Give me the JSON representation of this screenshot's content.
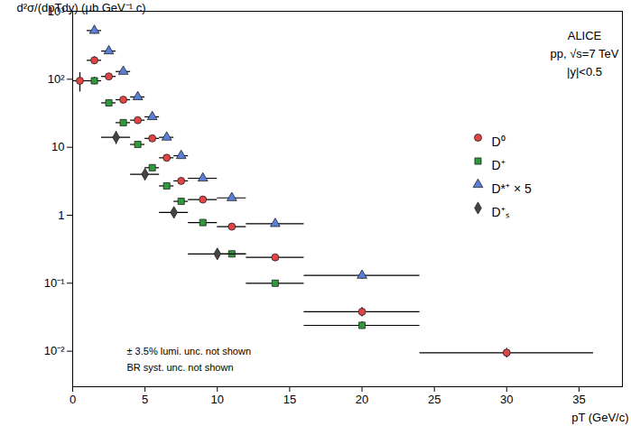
{
  "chart_data": {
    "type": "scatter",
    "x_label": "pT (GeV/c)",
    "y_label": "d²σ/(dpTdy) (μb GeV⁻¹ c)",
    "log": "y",
    "xlim": [
      0,
      38
    ],
    "ylim": [
      0.003,
      1000
    ],
    "xticks": [
      0,
      5,
      10,
      15,
      20,
      25,
      30,
      35
    ],
    "yticks": [
      {
        "value": 0.01,
        "label": "10⁻²"
      },
      {
        "value": 0.1,
        "label": "10⁻¹"
      },
      1,
      10,
      {
        "value": 100,
        "label": "10²"
      },
      {
        "value": 1000,
        "label": "10³"
      }
    ],
    "annotations": [
      "ALICE",
      "pp, √s=7 TeV",
      "|y|<0.5"
    ],
    "notes": [
      "± 3.5% lumi. unc. not shown",
      "BR syst. unc. not shown"
    ],
    "legend": "right",
    "series": [
      {
        "name": "D⁰",
        "color": "#e04545",
        "marker": "circle",
        "x": [
          0.5,
          1.5,
          2.5,
          3.5,
          4.5,
          5.5,
          6.5,
          7.5,
          9,
          11,
          14,
          20,
          30
        ],
        "x_err": [
          0.5,
          0.5,
          0.5,
          0.5,
          0.5,
          0.5,
          0.5,
          0.5,
          1,
          1,
          2,
          4,
          6
        ],
        "values": [
          95,
          190,
          110,
          50,
          25,
          13.5,
          7,
          3.2,
          1.7,
          0.68,
          0.24,
          0.038,
          0.0095
        ],
        "errors": [
          30,
          25,
          12,
          5,
          2.5,
          1.3,
          0.7,
          0.3,
          0.15,
          0.06,
          0.02,
          0.006,
          0.0015
        ]
      },
      {
        "name": "D⁺",
        "color": "#2f9a3c",
        "marker": "square",
        "x": [
          1.5,
          2.5,
          3.5,
          4.5,
          5.5,
          6.5,
          7.5,
          9,
          11,
          14,
          20
        ],
        "x_err": [
          0.5,
          0.5,
          0.5,
          0.5,
          0.5,
          0.5,
          0.5,
          1,
          1,
          2,
          4
        ],
        "values": [
          95,
          45,
          23,
          11,
          5,
          2.7,
          1.6,
          0.78,
          0.27,
          0.1,
          0.024
        ],
        "errors": [
          12,
          5,
          2.3,
          1.1,
          0.5,
          0.27,
          0.15,
          0.07,
          0.025,
          0.01,
          0.003
        ]
      },
      {
        "name": "D*⁺ × 5",
        "color": "#5a7fd9",
        "marker": "triangle",
        "x": [
          1.5,
          2.5,
          3.5,
          4.5,
          5.5,
          6.5,
          7.5,
          9,
          11,
          14,
          20
        ],
        "x_err": [
          0.5,
          0.5,
          0.5,
          0.5,
          0.5,
          0.5,
          0.5,
          1,
          1,
          2,
          4
        ],
        "values": [
          520,
          260,
          130,
          55,
          28,
          14,
          7.5,
          3.5,
          1.8,
          0.75,
          0.13
        ],
        "errors": [
          60,
          25,
          12,
          5,
          2.5,
          1.3,
          0.7,
          0.3,
          0.15,
          0.06,
          0.015
        ]
      },
      {
        "name": "D⁺ₛ",
        "color": "#444444",
        "marker": "diamond",
        "x": [
          3,
          5,
          7,
          10
        ],
        "x_err": [
          1,
          1,
          1,
          2
        ],
        "values": [
          14,
          4,
          1.1,
          0.27
        ],
        "errors": [
          3,
          0.6,
          0.15,
          0.04
        ]
      }
    ]
  }
}
